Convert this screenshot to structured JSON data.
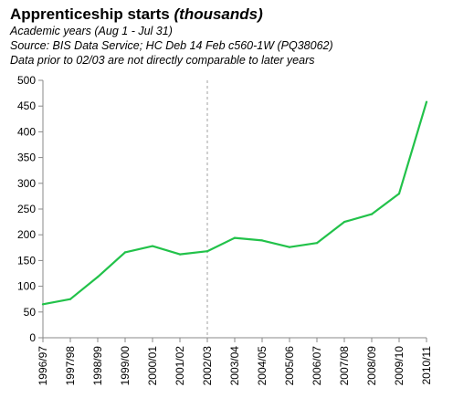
{
  "header": {
    "title_main": "Apprenticeship starts",
    "title_em": "(thousands)",
    "subtitle_1": "Academic years (Aug 1 - Jul 31)",
    "subtitle_2": "Source: BIS Data Service; HC Deb 14 Feb c560-1W (PQ38062)",
    "subtitle_3": "Data prior to 02/03 are not directly comparable to later years"
  },
  "chart_data": {
    "type": "line",
    "title": "Apprenticeship starts (thousands)",
    "xlabel": "",
    "ylabel": "",
    "categories": [
      "1996/97",
      "1997/98",
      "1998/99",
      "1999/00",
      "2000/01",
      "2001/02",
      "2002/03",
      "2003/04",
      "2004/05",
      "2005/06",
      "2006/07",
      "2007/08",
      "2008/09",
      "2009/10",
      "2010/11"
    ],
    "series": [
      {
        "values": [
          65,
          75,
          118,
          166,
          178,
          162,
          168,
          194,
          189,
          176,
          184,
          225,
          240,
          280,
          458
        ]
      }
    ],
    "ylim": [
      0,
      500
    ],
    "yticks": [
      0,
      50,
      100,
      150,
      200,
      250,
      300,
      350,
      400,
      450,
      500
    ],
    "series_color": "#22c24a",
    "divider_at": "2002/03",
    "grid": false,
    "legend": "none"
  }
}
